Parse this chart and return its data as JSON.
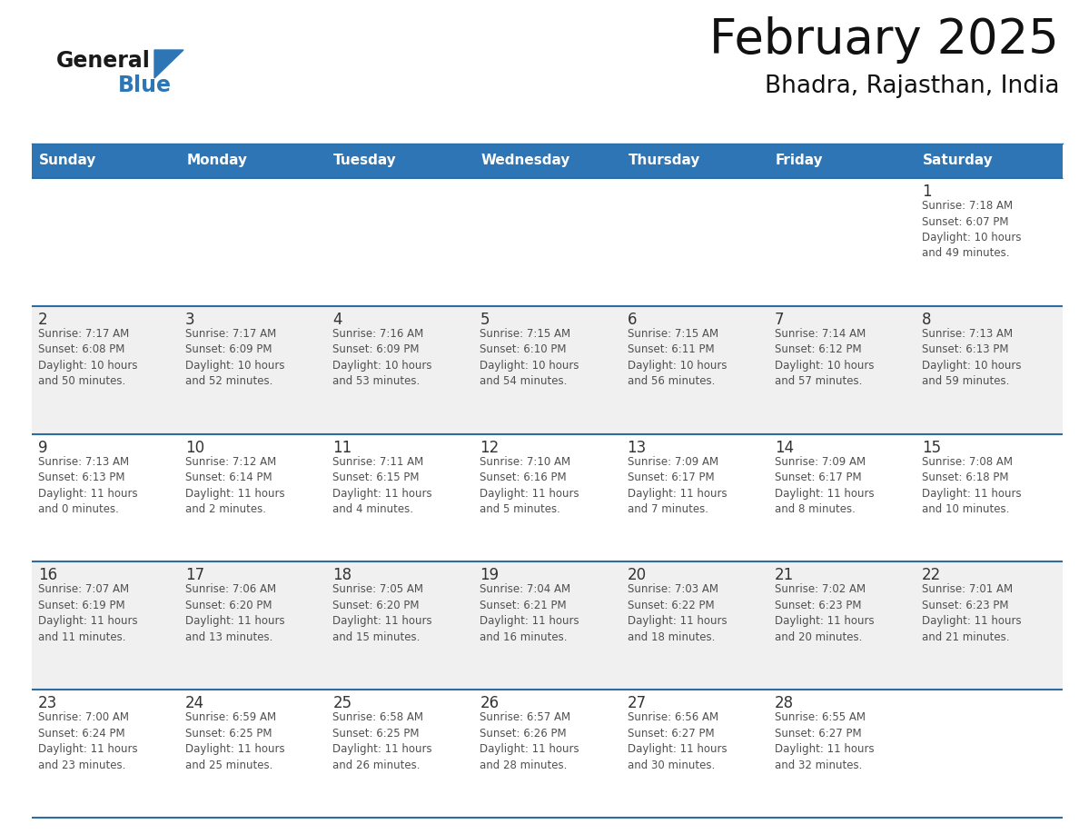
{
  "title": "February 2025",
  "subtitle": "Bhadra, Rajasthan, India",
  "header_color": "#2E75B6",
  "header_text_color": "#FFFFFF",
  "days_of_week": [
    "Sunday",
    "Monday",
    "Tuesday",
    "Wednesday",
    "Thursday",
    "Friday",
    "Saturday"
  ],
  "cell_bg_white": "#FFFFFF",
  "cell_bg_gray": "#F0F0F0",
  "divider_color": "#2E6DA4",
  "text_color": "#505050",
  "date_color": "#333333",
  "calendar": [
    [
      {
        "day": null,
        "info": null
      },
      {
        "day": null,
        "info": null
      },
      {
        "day": null,
        "info": null
      },
      {
        "day": null,
        "info": null
      },
      {
        "day": null,
        "info": null
      },
      {
        "day": null,
        "info": null
      },
      {
        "day": 1,
        "info": "Sunrise: 7:18 AM\nSunset: 6:07 PM\nDaylight: 10 hours\nand 49 minutes."
      }
    ],
    [
      {
        "day": 2,
        "info": "Sunrise: 7:17 AM\nSunset: 6:08 PM\nDaylight: 10 hours\nand 50 minutes."
      },
      {
        "day": 3,
        "info": "Sunrise: 7:17 AM\nSunset: 6:09 PM\nDaylight: 10 hours\nand 52 minutes."
      },
      {
        "day": 4,
        "info": "Sunrise: 7:16 AM\nSunset: 6:09 PM\nDaylight: 10 hours\nand 53 minutes."
      },
      {
        "day": 5,
        "info": "Sunrise: 7:15 AM\nSunset: 6:10 PM\nDaylight: 10 hours\nand 54 minutes."
      },
      {
        "day": 6,
        "info": "Sunrise: 7:15 AM\nSunset: 6:11 PM\nDaylight: 10 hours\nand 56 minutes."
      },
      {
        "day": 7,
        "info": "Sunrise: 7:14 AM\nSunset: 6:12 PM\nDaylight: 10 hours\nand 57 minutes."
      },
      {
        "day": 8,
        "info": "Sunrise: 7:13 AM\nSunset: 6:13 PM\nDaylight: 10 hours\nand 59 minutes."
      }
    ],
    [
      {
        "day": 9,
        "info": "Sunrise: 7:13 AM\nSunset: 6:13 PM\nDaylight: 11 hours\nand 0 minutes."
      },
      {
        "day": 10,
        "info": "Sunrise: 7:12 AM\nSunset: 6:14 PM\nDaylight: 11 hours\nand 2 minutes."
      },
      {
        "day": 11,
        "info": "Sunrise: 7:11 AM\nSunset: 6:15 PM\nDaylight: 11 hours\nand 4 minutes."
      },
      {
        "day": 12,
        "info": "Sunrise: 7:10 AM\nSunset: 6:16 PM\nDaylight: 11 hours\nand 5 minutes."
      },
      {
        "day": 13,
        "info": "Sunrise: 7:09 AM\nSunset: 6:17 PM\nDaylight: 11 hours\nand 7 minutes."
      },
      {
        "day": 14,
        "info": "Sunrise: 7:09 AM\nSunset: 6:17 PM\nDaylight: 11 hours\nand 8 minutes."
      },
      {
        "day": 15,
        "info": "Sunrise: 7:08 AM\nSunset: 6:18 PM\nDaylight: 11 hours\nand 10 minutes."
      }
    ],
    [
      {
        "day": 16,
        "info": "Sunrise: 7:07 AM\nSunset: 6:19 PM\nDaylight: 11 hours\nand 11 minutes."
      },
      {
        "day": 17,
        "info": "Sunrise: 7:06 AM\nSunset: 6:20 PM\nDaylight: 11 hours\nand 13 minutes."
      },
      {
        "day": 18,
        "info": "Sunrise: 7:05 AM\nSunset: 6:20 PM\nDaylight: 11 hours\nand 15 minutes."
      },
      {
        "day": 19,
        "info": "Sunrise: 7:04 AM\nSunset: 6:21 PM\nDaylight: 11 hours\nand 16 minutes."
      },
      {
        "day": 20,
        "info": "Sunrise: 7:03 AM\nSunset: 6:22 PM\nDaylight: 11 hours\nand 18 minutes."
      },
      {
        "day": 21,
        "info": "Sunrise: 7:02 AM\nSunset: 6:23 PM\nDaylight: 11 hours\nand 20 minutes."
      },
      {
        "day": 22,
        "info": "Sunrise: 7:01 AM\nSunset: 6:23 PM\nDaylight: 11 hours\nand 21 minutes."
      }
    ],
    [
      {
        "day": 23,
        "info": "Sunrise: 7:00 AM\nSunset: 6:24 PM\nDaylight: 11 hours\nand 23 minutes."
      },
      {
        "day": 24,
        "info": "Sunrise: 6:59 AM\nSunset: 6:25 PM\nDaylight: 11 hours\nand 25 minutes."
      },
      {
        "day": 25,
        "info": "Sunrise: 6:58 AM\nSunset: 6:25 PM\nDaylight: 11 hours\nand 26 minutes."
      },
      {
        "day": 26,
        "info": "Sunrise: 6:57 AM\nSunset: 6:26 PM\nDaylight: 11 hours\nand 28 minutes."
      },
      {
        "day": 27,
        "info": "Sunrise: 6:56 AM\nSunset: 6:27 PM\nDaylight: 11 hours\nand 30 minutes."
      },
      {
        "day": 28,
        "info": "Sunrise: 6:55 AM\nSunset: 6:27 PM\nDaylight: 11 hours\nand 32 minutes."
      },
      {
        "day": null,
        "info": null
      }
    ]
  ],
  "logo_text_general": "General",
  "logo_text_blue": "Blue",
  "logo_color_general": "#1a1a1a",
  "logo_color_blue": "#2E75B6",
  "logo_triangle_color": "#2E75B6",
  "fig_width": 11.88,
  "fig_height": 9.18,
  "dpi": 100
}
